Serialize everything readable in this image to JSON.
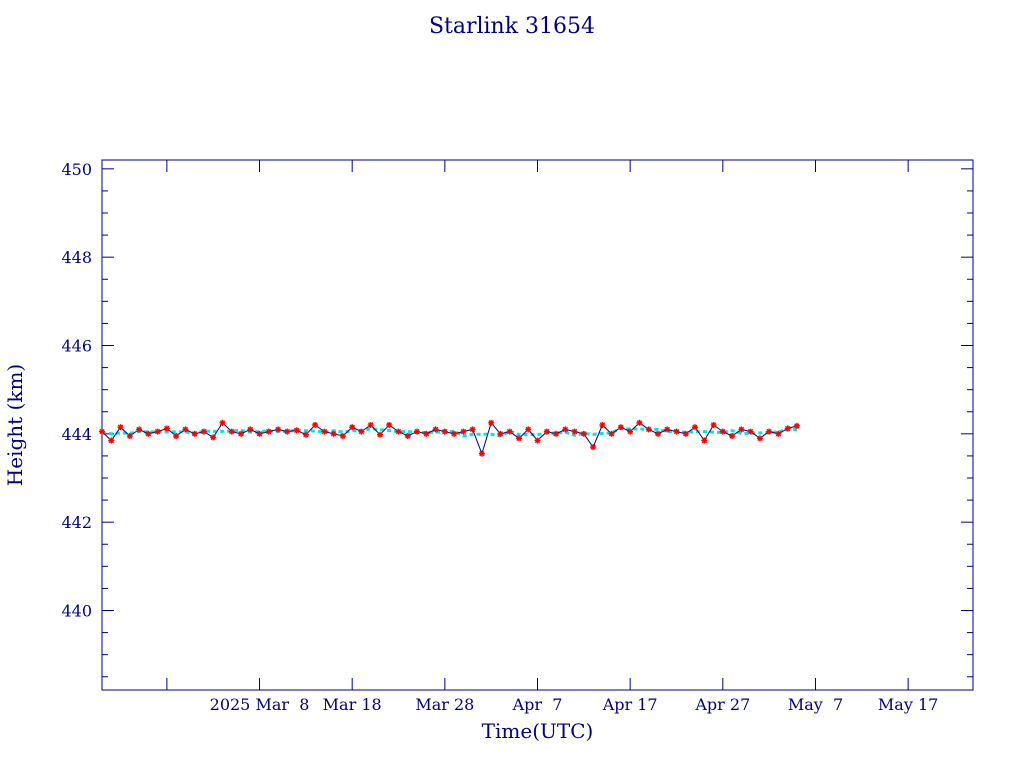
{
  "chart_data": {
    "type": "line",
    "title": "Starlink 31654",
    "xlabel": "Time(UTC)",
    "ylabel": "Height (km)",
    "ylim": [
      438.2,
      450.2
    ],
    "yticks": [
      440,
      442,
      444,
      446,
      448,
      450
    ],
    "ytick_labels": [
      "440",
      "442",
      "444",
      "446",
      "448",
      "450"
    ],
    "xlim": [
      "2025-02-19T00:00",
      "2025-05-24T00:00"
    ],
    "xticks": [
      "2025-02-26",
      "2025-03-08",
      "2025-03-18",
      "2025-03-28",
      "2025-04-07",
      "2025-04-17",
      "2025-04-27",
      "2025-05-07",
      "2025-05-17"
    ],
    "xtick_labels": [
      "2025 Mar  8",
      "Mar 18",
      "Mar 28",
      "Apr  7",
      "Apr 17",
      "Apr 27",
      "May  7",
      "May 17"
    ],
    "xtick_label_dates": [
      "2025-03-08",
      "2025-03-18",
      "2025-03-28",
      "2025-04-07",
      "2025-04-17",
      "2025-04-27",
      "2025-05-07",
      "2025-05-17"
    ],
    "grid": false,
    "colors": {
      "axes": "#000080",
      "line": "#000080",
      "points": "#ff0000",
      "smooth": "#00e5e5"
    },
    "series": [
      {
        "x": [
          "2025-02-19",
          "2025-02-20",
          "2025-02-21",
          "2025-02-22",
          "2025-02-23",
          "2025-02-24",
          "2025-02-25",
          "2025-02-26",
          "2025-02-27",
          "2025-02-28",
          "2025-03-01",
          "2025-03-02",
          "2025-03-03",
          "2025-03-04",
          "2025-03-05",
          "2025-03-06",
          "2025-03-07",
          "2025-03-08",
          "2025-03-09",
          "2025-03-10",
          "2025-03-11",
          "2025-03-12",
          "2025-03-13",
          "2025-03-14",
          "2025-03-15",
          "2025-03-16",
          "2025-03-17",
          "2025-03-18",
          "2025-03-19",
          "2025-03-20",
          "2025-03-21",
          "2025-03-22",
          "2025-03-23",
          "2025-03-24",
          "2025-03-25",
          "2025-03-26",
          "2025-03-27",
          "2025-03-28",
          "2025-03-29",
          "2025-03-30",
          "2025-03-31",
          "2025-04-01",
          "2025-04-02",
          "2025-04-03",
          "2025-04-04",
          "2025-04-05",
          "2025-04-06",
          "2025-04-07",
          "2025-04-08",
          "2025-04-09",
          "2025-04-10",
          "2025-04-11",
          "2025-04-12",
          "2025-04-13",
          "2025-04-14",
          "2025-04-15",
          "2025-04-16",
          "2025-04-17",
          "2025-04-18",
          "2025-04-19",
          "2025-04-20",
          "2025-04-21",
          "2025-04-22",
          "2025-04-23",
          "2025-04-24",
          "2025-04-25",
          "2025-04-26",
          "2025-04-27",
          "2025-04-28",
          "2025-04-29",
          "2025-04-30",
          "2025-05-01",
          "2025-05-02",
          "2025-05-03",
          "2025-05-04",
          "2025-05-05"
        ],
        "values": [
          444.05,
          443.85,
          444.15,
          443.95,
          444.1,
          444.0,
          444.05,
          444.12,
          443.95,
          444.1,
          444.0,
          444.05,
          443.92,
          444.25,
          444.05,
          444.0,
          444.1,
          444.0,
          444.05,
          444.1,
          444.05,
          444.08,
          443.98,
          444.2,
          444.05,
          444.0,
          443.95,
          444.15,
          444.05,
          444.2,
          443.98,
          444.2,
          444.05,
          443.95,
          444.05,
          444.0,
          444.1,
          444.05,
          444.0,
          444.05,
          444.1,
          443.55,
          444.25,
          444.0,
          444.05,
          443.9,
          444.1,
          443.85,
          444.05,
          444.0,
          444.1,
          444.05,
          444.0,
          443.7,
          444.2,
          444.0,
          444.15,
          444.05,
          444.25,
          444.1,
          444.0,
          444.1,
          444.05,
          444.0,
          444.15,
          443.85,
          444.2,
          444.05,
          443.95,
          444.1,
          444.05,
          443.9,
          444.05,
          444.0,
          444.12,
          444.18
        ]
      }
    ]
  }
}
